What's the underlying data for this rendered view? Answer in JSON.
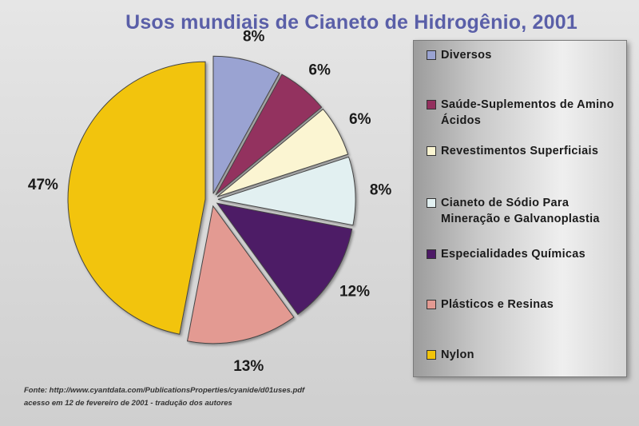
{
  "chart_data": {
    "type": "pie",
    "title": "Usos mundiais de Cianeto de Hidrogênio, 2001",
    "slices": [
      {
        "label": "Diversos",
        "value": 8,
        "display": "8%",
        "color": "#9aa3d2"
      },
      {
        "label": "Saúde-Suplementos de Amino Ácidos",
        "value": 6,
        "display": "6%",
        "color": "#93305e"
      },
      {
        "label": "Revestimentos Superficiais",
        "value": 6,
        "display": "6%",
        "color": "#fbf5d2"
      },
      {
        "label": "Cianeto de Sódio Para Mineração e Galvanoplastia",
        "value": 8,
        "display": "8%",
        "color": "#e2f0f1"
      },
      {
        "label": "Especialidades Químicas",
        "value": 12,
        "display": "12%",
        "color": "#4d1a66"
      },
      {
        "label": "Plásticos e Resinas",
        "value": 13,
        "display": "13%",
        "color": "#e39a92"
      },
      {
        "label": "Nylon",
        "value": 47,
        "display": "47%",
        "color": "#f2c40a"
      }
    ],
    "legend_position": "right"
  },
  "source": {
    "line1": "Fonte: http://www.cyantdata.com/PublicationsProperties/cyanide/d01uses.pdf",
    "line2": "acesso em 12 de fevereiro de 2001 - tradução dos autores"
  }
}
